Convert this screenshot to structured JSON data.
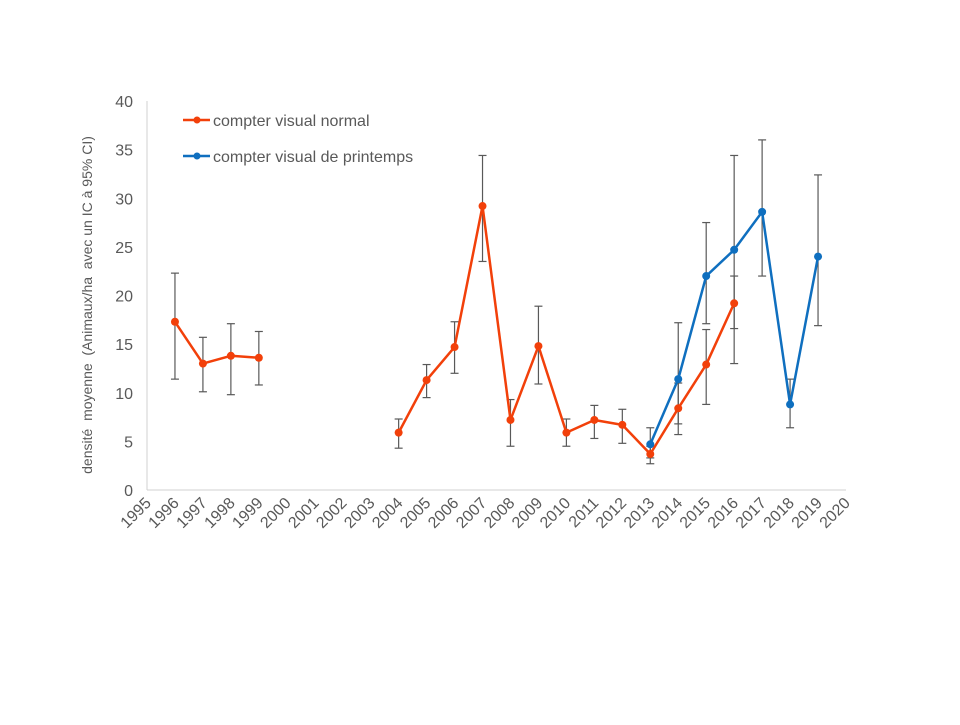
{
  "chart_data": {
    "type": "line",
    "title": "",
    "xlabel": "",
    "ylabel": "densité  moyenne  (Animaux/ha  avec un IC à 95% CI)",
    "ylim": [
      0,
      40
    ],
    "yticks": [
      0,
      5,
      10,
      15,
      20,
      25,
      30,
      35,
      40
    ],
    "xticks": [
      "1995",
      "1996",
      "1997",
      "1998",
      "1999",
      "2000",
      "2001",
      "2002",
      "2003",
      "2004",
      "2005",
      "2006",
      "2007",
      "2008",
      "2009",
      "2010",
      "2011",
      "2012",
      "2013",
      "2014",
      "2015",
      "2016",
      "2017",
      "2018",
      "2019",
      "2020"
    ],
    "grid": false,
    "legend_placement": "top-left",
    "series": [
      {
        "name": "compter visual normal",
        "color": "#F2400A",
        "segments": [
          [
            {
              "x": 1996,
              "y": 17.3,
              "lo": 11.4,
              "hi": 22.3
            },
            {
              "x": 1997,
              "y": 13.0,
              "lo": 10.1,
              "hi": 15.7
            },
            {
              "x": 1998,
              "y": 13.8,
              "lo": 9.8,
              "hi": 17.1
            },
            {
              "x": 1999,
              "y": 13.6,
              "lo": 10.8,
              "hi": 16.3
            }
          ],
          [
            {
              "x": 2004,
              "y": 5.9,
              "lo": 4.3,
              "hi": 7.3
            },
            {
              "x": 2005,
              "y": 11.3,
              "lo": 9.5,
              "hi": 12.9
            },
            {
              "x": 2006,
              "y": 14.7,
              "lo": 12.0,
              "hi": 17.3
            },
            {
              "x": 2007,
              "y": 29.2,
              "lo": 23.5,
              "hi": 34.4
            },
            {
              "x": 2008,
              "y": 7.2,
              "lo": 4.5,
              "hi": 9.3
            },
            {
              "x": 2009,
              "y": 14.8,
              "lo": 10.9,
              "hi": 18.9
            },
            {
              "x": 2010,
              "y": 5.9,
              "lo": 4.5,
              "hi": 7.3
            },
            {
              "x": 2011,
              "y": 7.2,
              "lo": 5.3,
              "hi": 8.7
            },
            {
              "x": 2012,
              "y": 6.7,
              "lo": 4.8,
              "hi": 8.3
            },
            {
              "x": 2013,
              "y": 3.7,
              "lo": 2.7,
              "hi": 4.5
            },
            {
              "x": 2014,
              "y": 8.4,
              "lo": 6.8,
              "hi": 11.0
            },
            {
              "x": 2015,
              "y": 12.9,
              "lo": 8.8,
              "hi": 16.5
            },
            {
              "x": 2016,
              "y": 19.2,
              "lo": 16.6,
              "hi": 22.0
            }
          ]
        ]
      },
      {
        "name": "compter visual de printemps",
        "color": "#0F6FBF",
        "segments": [
          [
            {
              "x": 2013,
              "y": 4.7,
              "lo": 3.3,
              "hi": 6.4
            },
            {
              "x": 2014,
              "y": 11.4,
              "lo": 5.7,
              "hi": 17.2
            },
            {
              "x": 2015,
              "y": 22.0,
              "lo": 17.1,
              "hi": 27.5
            },
            {
              "x": 2016,
              "y": 24.7,
              "lo": 13.0,
              "hi": 34.4
            },
            {
              "x": 2017,
              "y": 28.6,
              "lo": 22.0,
              "hi": 36.0
            },
            {
              "x": 2018,
              "y": 8.8,
              "lo": 6.4,
              "hi": 11.4
            },
            {
              "x": 2019,
              "y": 24.0,
              "lo": 16.9,
              "hi": 32.4
            }
          ]
        ]
      }
    ]
  }
}
